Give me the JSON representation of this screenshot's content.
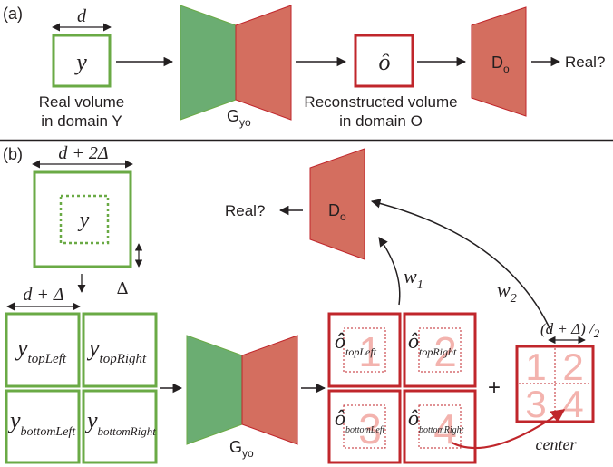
{
  "colors": {
    "green_stroke": "#6aaa45",
    "green_fill": "#6bad72",
    "red_stroke": "#c0262b",
    "red_fill": "#d46e5f",
    "pink_text": "#f3b3ae",
    "black": "#231f20"
  },
  "panel_a": {
    "label": "(a)",
    "d_label": "d",
    "y_label": "y",
    "real_volume_line1": "Real volume",
    "real_volume_line2": "in domain Y",
    "generator_main": "G",
    "generator_sub": "yo",
    "o_hat": "ô",
    "reconstructed_line1": "Reconstructed volume",
    "reconstructed_line2": "in domain O",
    "discriminator_main": "D",
    "discriminator_sub": "o",
    "real_question": "Real?"
  },
  "panel_b": {
    "label": "(b)",
    "outer_width_label": "d + 2Δ",
    "y_label": "y",
    "delta_label": "Δ",
    "patch_width_label": "d + Δ",
    "patches_y": [
      {
        "base": "y",
        "sub": "topLeft"
      },
      {
        "base": "y",
        "sub": "topRight"
      },
      {
        "base": "y",
        "sub": "bottomLeft"
      },
      {
        "base": "y",
        "sub": "bottomRight"
      }
    ],
    "generator_main": "G",
    "generator_sub": "yo",
    "patches_o": [
      {
        "base": "ô",
        "sub": "topLeft",
        "num": "1"
      },
      {
        "base": "ô",
        "sub": "topRight",
        "num": "2"
      },
      {
        "base": "ô",
        "sub": "bottomLeft",
        "num": "3"
      },
      {
        "base": "ô",
        "sub": "bottomRight",
        "num": "4"
      }
    ],
    "plus": "+",
    "center_width_label": "(d + Δ) /",
    "center_width_sub": "2",
    "center_nums": [
      "1",
      "2",
      "3",
      "4"
    ],
    "center_label": "center",
    "discriminator_main": "D",
    "discriminator_sub": "o",
    "real_question": "Real?",
    "w1_main": "w",
    "w1_sub": "1",
    "w2_main": "w",
    "w2_sub": "2"
  }
}
